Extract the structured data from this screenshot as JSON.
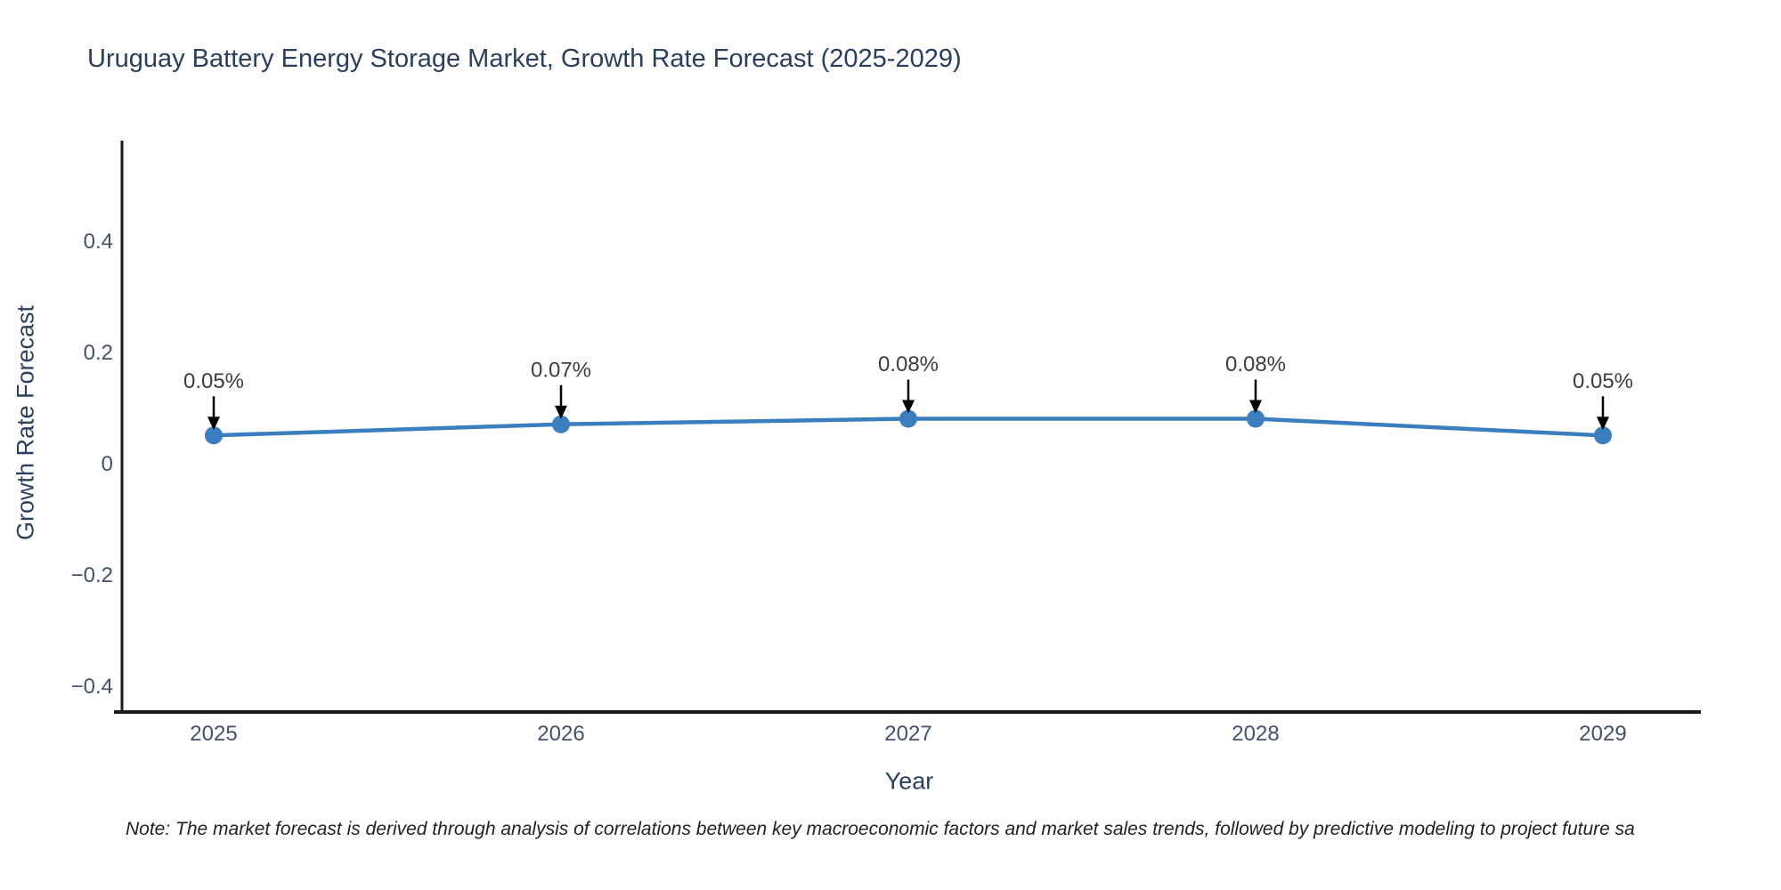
{
  "title": "Uruguay Battery Energy Storage Market, Growth Rate Forecast (2025-2029)",
  "footnote": "Note: The market forecast is derived through analysis of correlations between key macroeconomic factors and market sales trends, followed by predictive modeling to project future sa",
  "chart_data": {
    "type": "line",
    "title": "Uruguay Battery Energy Storage Market, Growth Rate Forecast (2025-2029)",
    "xlabel": "Year",
    "ylabel": "Growth Rate Forecast",
    "categories": [
      "2025",
      "2026",
      "2027",
      "2028",
      "2029"
    ],
    "series": [
      {
        "name": "Growth Rate Forecast",
        "values": [
          0.05,
          0.07,
          0.08,
          0.08,
          0.05
        ],
        "point_labels": [
          "0.05%",
          "0.07%",
          "0.08%",
          "0.08%",
          "0.05%"
        ]
      }
    ],
    "yticks": [
      {
        "label": "0.4",
        "value": 0.4
      },
      {
        "label": "0.2",
        "value": 0.2
      },
      {
        "label": "0",
        "value": 0.0
      },
      {
        "label": "−0.2",
        "value": -0.2
      },
      {
        "label": "−0.4",
        "value": -0.4
      }
    ],
    "ylim": [
      -0.45,
      0.58
    ],
    "grid": false,
    "legend_position": "none",
    "annotations": "down-arrow from each label to its data point"
  },
  "colors": {
    "series_blue": "#3a7ebf",
    "axis_line": "#1a1a1a",
    "tick_label": "#42516d",
    "title_text": "#2a3f5f",
    "annotation_text": "#3d3d3d",
    "annotation_arrow": "#000000",
    "background": "#ffffff"
  }
}
